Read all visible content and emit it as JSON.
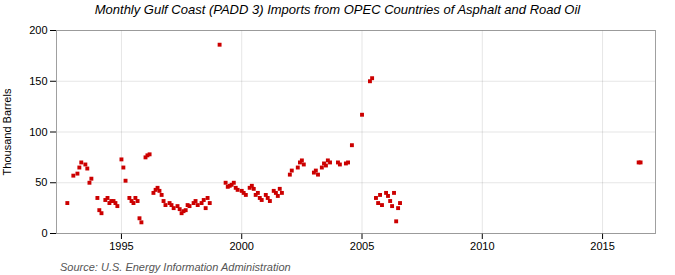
{
  "chart_data": {
    "type": "scatter",
    "title": "Monthly Gulf Coast (PADD 3) Imports from OPEC Countries of Asphalt and Road Oil",
    "ylabel": "Thousand Barrels",
    "caption": "Source: U.S. Energy Information Administration",
    "color": "#cc0000",
    "marker": "square",
    "grid": true,
    "xlim": [
      1992.3,
      2017.2
    ],
    "xticks": [
      1995,
      2000,
      2005,
      2010,
      2015
    ],
    "ylim": [
      0,
      200
    ],
    "yticks": [
      0,
      50,
      100,
      150,
      200
    ],
    "x": [
      1992.75,
      1993.0,
      1993.17,
      1993.25,
      1993.33,
      1993.5,
      1993.58,
      1993.67,
      1993.75,
      1994.0,
      1994.08,
      1994.17,
      1994.33,
      1994.42,
      1994.5,
      1994.58,
      1994.67,
      1994.75,
      1994.83,
      1995.0,
      1995.08,
      1995.17,
      1995.33,
      1995.42,
      1995.5,
      1995.58,
      1995.67,
      1995.75,
      1995.83,
      1996.0,
      1996.08,
      1996.17,
      1996.33,
      1996.42,
      1996.5,
      1996.58,
      1996.67,
      1996.75,
      1996.83,
      1997.0,
      1997.08,
      1997.17,
      1997.33,
      1997.42,
      1997.5,
      1997.58,
      1997.67,
      1997.75,
      1997.83,
      1998.0,
      1998.08,
      1998.17,
      1998.33,
      1998.42,
      1998.5,
      1998.58,
      1998.67,
      1999.08,
      1999.33,
      1999.42,
      1999.5,
      1999.58,
      1999.67,
      1999.75,
      1999.83,
      2000.0,
      2000.08,
      2000.17,
      2000.33,
      2000.42,
      2000.5,
      2000.58,
      2000.67,
      2000.75,
      2000.83,
      2001.0,
      2001.08,
      2001.17,
      2001.33,
      2001.42,
      2001.5,
      2001.58,
      2001.67,
      2002.0,
      2002.08,
      2002.33,
      2002.42,
      2002.5,
      2002.58,
      2003.0,
      2003.08,
      2003.17,
      2003.33,
      2003.42,
      2003.5,
      2003.58,
      2003.67,
      2004.0,
      2004.08,
      2004.33,
      2004.42,
      2004.58,
      2005.0,
      2005.33,
      2005.42,
      2005.58,
      2005.67,
      2005.75,
      2005.83,
      2006.0,
      2006.08,
      2006.17,
      2006.25,
      2006.33,
      2006.42,
      2006.5,
      2006.58,
      2016.5,
      2016.58
    ],
    "values": [
      30,
      57,
      59,
      65,
      70,
      68,
      64,
      50,
      54,
      35,
      23,
      20,
      33,
      35,
      30,
      32,
      32,
      30,
      27,
      73,
      65,
      52,
      35,
      32,
      30,
      35,
      32,
      15,
      11,
      75,
      77,
      78,
      40,
      43,
      45,
      42,
      38,
      32,
      28,
      30,
      28,
      25,
      27,
      24,
      20,
      22,
      23,
      28,
      27,
      30,
      32,
      28,
      30,
      33,
      25,
      35,
      30,
      186,
      50,
      46,
      47,
      48,
      50,
      45,
      43,
      42,
      40,
      38,
      45,
      47,
      44,
      38,
      40,
      35,
      33,
      38,
      35,
      32,
      42,
      40,
      37,
      44,
      40,
      58,
      62,
      65,
      70,
      72,
      68,
      60,
      62,
      58,
      65,
      69,
      67,
      72,
      70,
      70,
      68,
      69,
      70,
      87,
      117,
      150,
      153,
      35,
      30,
      38,
      28,
      40,
      37,
      32,
      27,
      40,
      12,
      25,
      30,
      70,
      70
    ]
  }
}
